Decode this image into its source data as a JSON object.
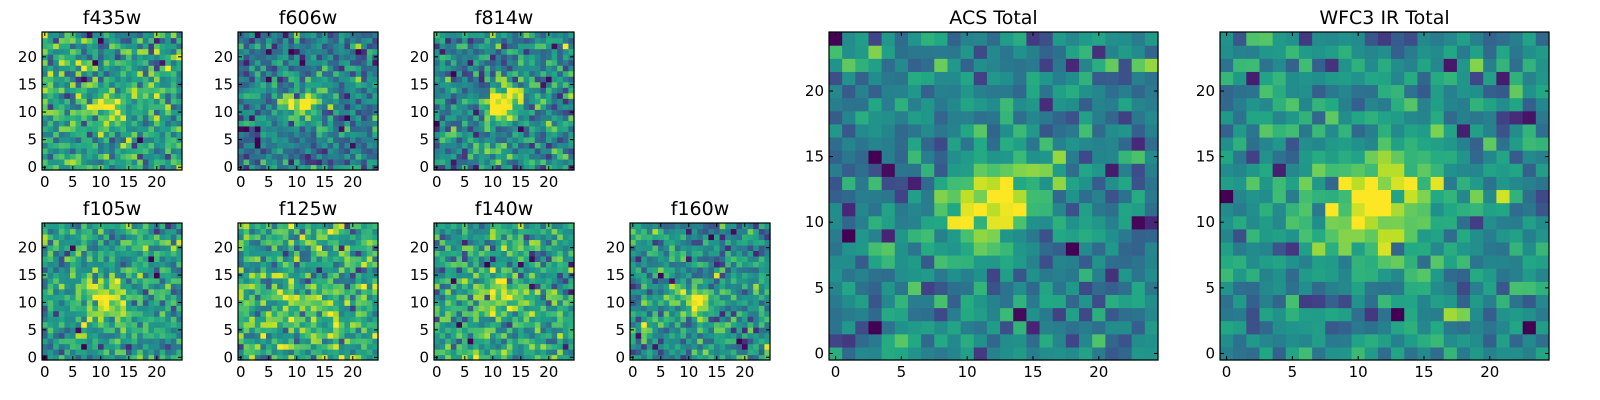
{
  "colormap": "viridis",
  "colors": {
    "low": "#440154",
    "mid": "#21918c",
    "high": "#fde725",
    "axis": "#000000"
  },
  "chart_data": [
    {
      "type": "heatmap",
      "title": "f435w",
      "grid_size": [
        25,
        25
      ],
      "xlim": [
        0,
        25
      ],
      "ylim": [
        0,
        25
      ],
      "xticks": [
        0,
        5,
        10,
        15,
        20
      ],
      "yticks": [
        0,
        5,
        10,
        15,
        20
      ],
      "source": {
        "center": [
          11.5,
          11.5
        ],
        "sigma": 1.7,
        "elongation": 1.4,
        "angle_deg": 30,
        "peak": 0.95
      },
      "background": {
        "level": 0.58,
        "noise": 0.16
      }
    },
    {
      "type": "heatmap",
      "title": "f606w",
      "grid_size": [
        25,
        25
      ],
      "xlim": [
        0,
        25
      ],
      "ylim": [
        0,
        25
      ],
      "xticks": [
        0,
        5,
        10,
        15,
        20
      ],
      "yticks": [
        0,
        5,
        10,
        15,
        20
      ],
      "source": {
        "center": [
          12,
          12
        ],
        "sigma": 1.6,
        "elongation": 1.5,
        "angle_deg": 35,
        "peak": 0.97
      },
      "background": {
        "level": 0.42,
        "noise": 0.16
      }
    },
    {
      "type": "heatmap",
      "title": "f814w",
      "grid_size": [
        25,
        25
      ],
      "xlim": [
        0,
        25
      ],
      "ylim": [
        0,
        25
      ],
      "xticks": [
        0,
        5,
        10,
        15,
        20
      ],
      "yticks": [
        0,
        5,
        10,
        15,
        20
      ],
      "source": {
        "center": [
          12,
          12
        ],
        "sigma": 1.7,
        "elongation": 1.5,
        "angle_deg": 30,
        "peak": 0.97
      },
      "background": {
        "level": 0.48,
        "noise": 0.17
      }
    },
    {
      "type": "heatmap",
      "title": "f105w",
      "grid_size": [
        25,
        25
      ],
      "xlim": [
        0,
        25
      ],
      "ylim": [
        0,
        25
      ],
      "xticks": [
        0,
        5,
        10,
        15,
        20
      ],
      "yticks": [
        0,
        5,
        10,
        15,
        20
      ],
      "source": {
        "center": [
          11,
          11
        ],
        "sigma": 2.2,
        "elongation": 1.1,
        "angle_deg": 0,
        "peak": 0.95
      },
      "background": {
        "level": 0.56,
        "noise": 0.14
      }
    },
    {
      "type": "heatmap",
      "title": "f125w",
      "grid_size": [
        25,
        25
      ],
      "xlim": [
        0,
        25
      ],
      "ylim": [
        0,
        25
      ],
      "xticks": [
        0,
        5,
        10,
        15,
        20
      ],
      "yticks": [
        0,
        5,
        10,
        15,
        20
      ],
      "source": {
        "center": [
          11.5,
          11
        ],
        "sigma": 2.2,
        "elongation": 1.1,
        "angle_deg": 0,
        "peak": 0.8
      },
      "background": {
        "level": 0.62,
        "noise": 0.17
      }
    },
    {
      "type": "heatmap",
      "title": "f140w",
      "grid_size": [
        25,
        25
      ],
      "xlim": [
        0,
        25
      ],
      "ylim": [
        0,
        25
      ],
      "xticks": [
        0,
        5,
        10,
        15,
        20
      ],
      "yticks": [
        0,
        5,
        10,
        15,
        20
      ],
      "source": {
        "center": [
          12.5,
          11.5
        ],
        "sigma": 2.3,
        "elongation": 1.1,
        "angle_deg": 0,
        "peak": 0.85
      },
      "background": {
        "level": 0.58,
        "noise": 0.16
      }
    },
    {
      "type": "heatmap",
      "title": "f160w",
      "grid_size": [
        25,
        25
      ],
      "xlim": [
        0,
        25
      ],
      "ylim": [
        0,
        25
      ],
      "xticks": [
        0,
        5,
        10,
        15,
        20
      ],
      "yticks": [
        0,
        5,
        10,
        15,
        20
      ],
      "source": {
        "center": [
          11.5,
          11.5
        ],
        "sigma": 2.0,
        "elongation": 1.1,
        "angle_deg": 0,
        "peak": 0.92
      },
      "background": {
        "level": 0.5,
        "noise": 0.15
      }
    },
    {
      "type": "heatmap",
      "title": "ACS Total",
      "grid_size": [
        25,
        25
      ],
      "xlim": [
        0,
        25
      ],
      "ylim": [
        0,
        25
      ],
      "xticks": [
        0,
        5,
        10,
        15,
        20
      ],
      "yticks": [
        0,
        5,
        10,
        15,
        20
      ],
      "source": {
        "center": [
          12.5,
          12
        ],
        "sigma": 1.7,
        "elongation": 1.6,
        "angle_deg": 30,
        "peak": 1.0
      },
      "background": {
        "level": 0.45,
        "noise": 0.13
      }
    },
    {
      "type": "heatmap",
      "title": "WFC3 IR Total",
      "grid_size": [
        25,
        25
      ],
      "xlim": [
        0,
        25
      ],
      "ylim": [
        0,
        25
      ],
      "xticks": [
        0,
        5,
        10,
        15,
        20
      ],
      "yticks": [
        0,
        5,
        10,
        15,
        20
      ],
      "source": {
        "center": [
          12,
          12
        ],
        "sigma": 2.5,
        "elongation": 1.15,
        "angle_deg": 20,
        "peak": 1.0
      },
      "background": {
        "level": 0.48,
        "noise": 0.12
      }
    }
  ]
}
